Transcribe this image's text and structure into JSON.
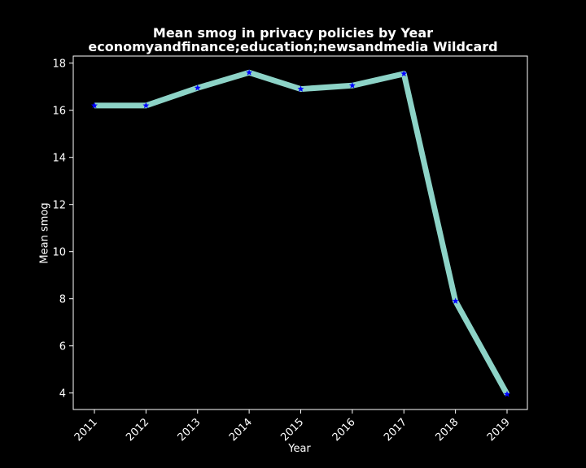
{
  "chart_data": {
    "type": "line",
    "title": "Mean smog in privacy policies by Year",
    "subtitle": "economyandfinance;education;newsandmedia Wildcard",
    "xlabel": "Year",
    "ylabel": "Mean smog",
    "categories": [
      "2011",
      "2012",
      "2013",
      "2014",
      "2015",
      "2016",
      "2017",
      "2018",
      "2019"
    ],
    "values": [
      16.2,
      16.2,
      16.95,
      17.6,
      16.9,
      17.05,
      17.55,
      7.9,
      3.95
    ],
    "yticks": [
      "4",
      "6",
      "8",
      "10",
      "12",
      "14",
      "16",
      "18"
    ],
    "ytick_values": [
      4,
      6,
      8,
      10,
      12,
      14,
      16,
      18
    ],
    "ylim": [
      3.3,
      18.3
    ],
    "line_color": "#8dd3c7",
    "marker_color": "#0000ff",
    "marker": "star",
    "background": "#000000",
    "frame_color": "#ffffff",
    "grid": false,
    "legend": "none"
  }
}
